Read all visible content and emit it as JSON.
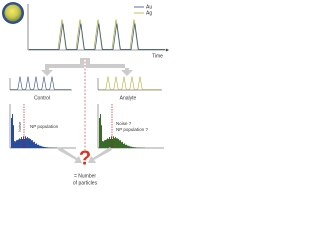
{
  "legend": {
    "items": [
      "Au",
      "Ag"
    ]
  },
  "top_panel": {
    "x_label": "Time"
  },
  "panels": [
    {
      "title": "Control",
      "labels": [
        "Noise",
        "NP population"
      ]
    },
    {
      "title": "Analyte",
      "labels": [
        "Noise ?",
        "NP population ?"
      ]
    }
  ],
  "result": {
    "symbol": "?",
    "text_lines": [
      "= Number",
      "of particles"
    ]
  }
}
